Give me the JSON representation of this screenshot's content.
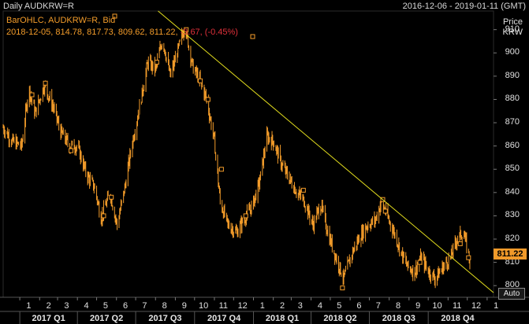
{
  "header": {
    "title": "Daily AUDKRW=R",
    "date_range": "2016-12-06 - 2019-01-11 (GMT)"
  },
  "legend": {
    "line1": "BarOHLC, AUDKRW=R, Bid",
    "line2_prefix": "2018-12-05, 814.78, 817.73, 809.62, 811.22,",
    "line2_change": " -3.67, (-0.45%)"
  },
  "price_axis": {
    "label_line1": "Price",
    "label_line2": "KRW"
  },
  "last_price": "811.22",
  "auto_button": "Auto",
  "colors": {
    "background": "#000000",
    "series": "#f39c2a",
    "trendline": "#e6e01e",
    "change_negative": "#e0303a",
    "grid": "#3a3a3a"
  },
  "chart_data": {
    "type": "ohlc",
    "ylim": [
      795,
      918
    ],
    "yticks": [
      800,
      810,
      820,
      830,
      840,
      850,
      860,
      870,
      880,
      890,
      900,
      910
    ],
    "month_ticks": [
      "1",
      "2",
      "3",
      "4",
      "5",
      "6",
      "7",
      "8",
      "9",
      "10",
      "11",
      "12",
      "1",
      "2",
      "3",
      "4",
      "5",
      "6",
      "7",
      "8",
      "9",
      "10",
      "11",
      "12",
      "1"
    ],
    "quarter_labels": [
      "2017 Q1",
      "2017 Q2",
      "2017 Q3",
      "2017 Q4",
      "2018 Q1",
      "2018 Q2",
      "2018 Q3",
      "2018 Q4"
    ],
    "x_start": "2016-12-06",
    "x_end": "2019-01-11",
    "series": [
      {
        "points": [
          {
            "date": "2016-12-06",
            "close": 868
          },
          {
            "date": "2016-12-20",
            "close": 862
          },
          {
            "date": "2017-01-04",
            "close": 860
          },
          {
            "date": "2017-01-15",
            "close": 885
          },
          {
            "date": "2017-01-25",
            "close": 874
          },
          {
            "date": "2017-02-08",
            "close": 886
          },
          {
            "date": "2017-02-22",
            "close": 877
          },
          {
            "date": "2017-03-06",
            "close": 866
          },
          {
            "date": "2017-03-20",
            "close": 860
          },
          {
            "date": "2017-04-01",
            "close": 860
          },
          {
            "date": "2017-04-15",
            "close": 848
          },
          {
            "date": "2017-04-28",
            "close": 842
          },
          {
            "date": "2017-05-08",
            "close": 829
          },
          {
            "date": "2017-05-22",
            "close": 840
          },
          {
            "date": "2017-06-02",
            "close": 826
          },
          {
            "date": "2017-06-14",
            "close": 842
          },
          {
            "date": "2017-06-26",
            "close": 862
          },
          {
            "date": "2017-07-08",
            "close": 878
          },
          {
            "date": "2017-07-20",
            "close": 896
          },
          {
            "date": "2017-08-01",
            "close": 893
          },
          {
            "date": "2017-08-12",
            "close": 906
          },
          {
            "date": "2017-08-24",
            "close": 890
          },
          {
            "date": "2017-09-06",
            "close": 902
          },
          {
            "date": "2017-09-16",
            "close": 912
          },
          {
            "date": "2017-09-28",
            "close": 894
          },
          {
            "date": "2017-10-08",
            "close": 889
          },
          {
            "date": "2017-10-20",
            "close": 880
          },
          {
            "date": "2017-11-01",
            "close": 862
          },
          {
            "date": "2017-11-10",
            "close": 836
          },
          {
            "date": "2017-11-22",
            "close": 826
          },
          {
            "date": "2017-12-06",
            "close": 823
          },
          {
            "date": "2017-12-18",
            "close": 829
          },
          {
            "date": "2017-12-30",
            "close": 834
          },
          {
            "date": "2018-01-10",
            "close": 844
          },
          {
            "date": "2018-01-22",
            "close": 864
          },
          {
            "date": "2018-02-01",
            "close": 862
          },
          {
            "date": "2018-02-14",
            "close": 852
          },
          {
            "date": "2018-02-26",
            "close": 846
          },
          {
            "date": "2018-03-10",
            "close": 840
          },
          {
            "date": "2018-03-22",
            "close": 836
          },
          {
            "date": "2018-04-04",
            "close": 826
          },
          {
            "date": "2018-04-16",
            "close": 835
          },
          {
            "date": "2018-04-28",
            "close": 822
          },
          {
            "date": "2018-05-10",
            "close": 812
          },
          {
            "date": "2018-05-22",
            "close": 803
          },
          {
            "date": "2018-06-04",
            "close": 814
          },
          {
            "date": "2018-06-16",
            "close": 821
          },
          {
            "date": "2018-06-28",
            "close": 826
          },
          {
            "date": "2018-07-10",
            "close": 828
          },
          {
            "date": "2018-07-20",
            "close": 836
          },
          {
            "date": "2018-07-30",
            "close": 829
          },
          {
            "date": "2018-08-10",
            "close": 822
          },
          {
            "date": "2018-08-20",
            "close": 814
          },
          {
            "date": "2018-08-30",
            "close": 808
          },
          {
            "date": "2018-09-10",
            "close": 806
          },
          {
            "date": "2018-09-20",
            "close": 812
          },
          {
            "date": "2018-10-02",
            "close": 806
          },
          {
            "date": "2018-10-12",
            "close": 803
          },
          {
            "date": "2018-10-24",
            "close": 808
          },
          {
            "date": "2018-11-05",
            "close": 812
          },
          {
            "date": "2018-11-15",
            "close": 820
          },
          {
            "date": "2018-11-25",
            "close": 823
          },
          {
            "date": "2018-12-05",
            "close": 811
          }
        ]
      }
    ],
    "trendline": [
      {
        "date": "2017-08-05",
        "value": 918
      },
      {
        "date": "2019-01-11",
        "value": 797
      }
    ],
    "markers": [
      {
        "date": "2017-01-20",
        "value": 882
      },
      {
        "date": "2017-02-10",
        "value": 887
      },
      {
        "date": "2017-03-22",
        "value": 858
      },
      {
        "date": "2017-05-12",
        "value": 830
      },
      {
        "date": "2017-05-24",
        "value": 838
      },
      {
        "date": "2017-08-03",
        "value": 896
      },
      {
        "date": "2017-09-18",
        "value": 910
      },
      {
        "date": "2017-10-10",
        "value": 888
      },
      {
        "date": "2017-10-22",
        "value": 880
      },
      {
        "date": "2017-11-12",
        "value": 850
      },
      {
        "date": "2017-12-20",
        "value": 830
      },
      {
        "date": "2018-03-20",
        "value": 841
      },
      {
        "date": "2018-05-20",
        "value": 799
      },
      {
        "date": "2018-07-22",
        "value": 837
      },
      {
        "date": "2018-07-26",
        "value": 832
      },
      {
        "date": "2018-09-18",
        "value": 810
      },
      {
        "date": "2018-11-20",
        "value": 818
      },
      {
        "date": "2018-12-03",
        "value": 812
      }
    ]
  }
}
